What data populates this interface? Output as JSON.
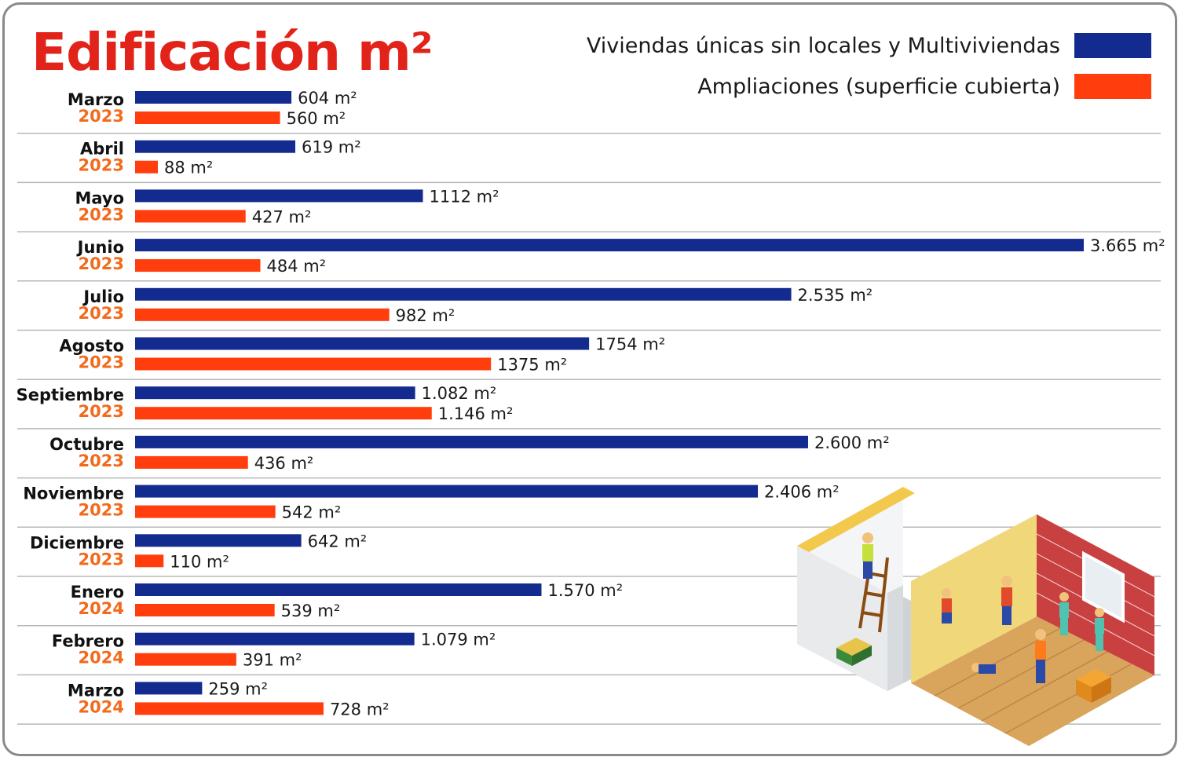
{
  "title": "Edificación m²",
  "legend": {
    "series1": "Viviendas únicas sin locales y Multiviviendas",
    "series2": "Ampliaciones (superficie cubierta)"
  },
  "colors": {
    "series1": "#132a8f",
    "series2": "#ff3d0d",
    "title": "#e2231a",
    "year": "#f26a1b"
  },
  "chart_data": {
    "type": "bar",
    "orientation": "horizontal",
    "title": "Edificación m²",
    "categories": [
      {
        "month": "Marzo",
        "year": "2023"
      },
      {
        "month": "Abril",
        "year": "2023"
      },
      {
        "month": "Mayo",
        "year": "2023"
      },
      {
        "month": "Junio",
        "year": "2023"
      },
      {
        "month": "Julio",
        "year": "2023"
      },
      {
        "month": "Agosto",
        "year": "2023"
      },
      {
        "month": "Septiembre",
        "year": "2023"
      },
      {
        "month": "Octubre",
        "year": "2023"
      },
      {
        "month": "Noviembre",
        "year": "2023"
      },
      {
        "month": "Diciembre",
        "year": "2023"
      },
      {
        "month": "Enero",
        "year": "2024"
      },
      {
        "month": "Febrero",
        "year": "2024"
      },
      {
        "month": "Marzo",
        "year": "2024"
      }
    ],
    "series": [
      {
        "name": "Viviendas únicas sin locales y Multiviviendas",
        "values": [
          604,
          619,
          1112,
          3665,
          2535,
          1754,
          1082,
          2600,
          2406,
          642,
          1570,
          1079,
          259
        ],
        "labels": [
          "604  m²",
          "619 m²",
          "1112 m²",
          "3.665 m²",
          "2.535 m²",
          "1754 m²",
          "1.082 m²",
          "2.600  m²",
          "2.406 m²",
          "642 m²",
          "1.570 m²",
          "1.079 m²",
          "259 m²"
        ]
      },
      {
        "name": "Ampliaciones (superficie cubierta)",
        "values": [
          560,
          88,
          427,
          484,
          982,
          1375,
          1146,
          436,
          542,
          110,
          539,
          391,
          728
        ],
        "labels": [
          "560 m²",
          "88 m²",
          "427 m²",
          "484 m²",
          "982 m²",
          "1375 m²",
          "1.146 m²",
          "436 m²",
          "542 m²",
          "110 m²",
          "539 m²",
          "391 m²",
          "728 m²"
        ]
      }
    ],
    "xlim": [
      0,
      3665
    ],
    "grid": false,
    "legend_position": "top-right"
  }
}
